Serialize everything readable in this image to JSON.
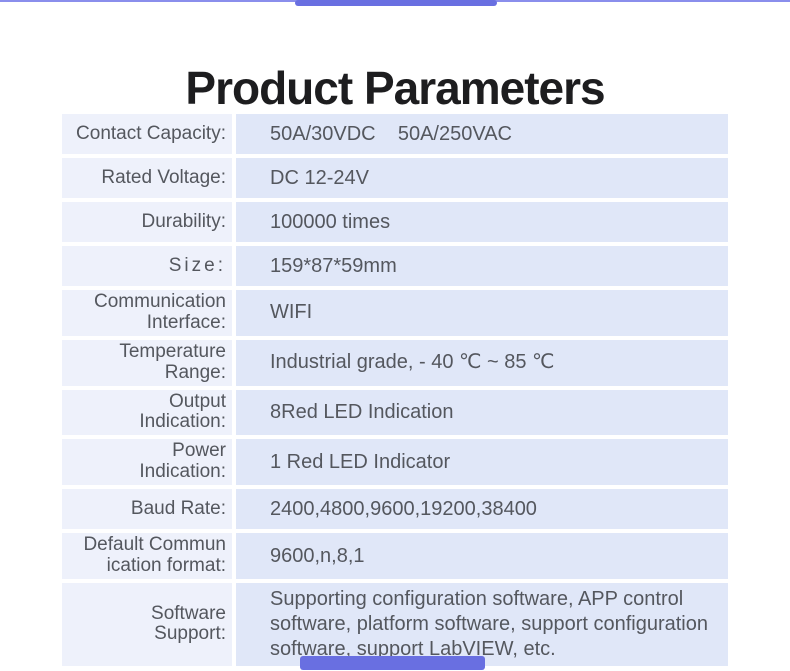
{
  "page": {
    "title": "Product Parameters"
  },
  "colors": {
    "accent": "#696fe1",
    "scroll_line": "#8a8eec",
    "label_bg": "#eef1fb",
    "value_bg": "#e0e7f8",
    "text": "#54575e",
    "title_text": "#1d1d1f"
  },
  "scrollbars": {
    "top_thumb": "horizontal-scrollbar-thumb",
    "bottom_thumb": "horizontal-scrollbar-thumb"
  },
  "table": {
    "rows": [
      {
        "label_lines": [
          "Contact Capacity:"
        ],
        "value": "50A/30VDC    50A/250VAC",
        "spaced": false,
        "tall": false
      },
      {
        "label_lines": [
          "Rated Voltage:"
        ],
        "value": "DC 12-24V",
        "spaced": false,
        "tall": false
      },
      {
        "label_lines": [
          "Durability:"
        ],
        "value": "100000 times",
        "spaced": false,
        "tall": false
      },
      {
        "label_lines": [
          "Size:"
        ],
        "value": "159*87*59mm",
        "spaced": true,
        "tall": false
      },
      {
        "label_lines": [
          "Communication",
          "Interface:"
        ],
        "value": "WIFI",
        "spaced": false,
        "tall": false
      },
      {
        "label_lines": [
          "Temperature",
          "Range:"
        ],
        "value": "Industrial grade, - 40 ℃ ~ 85 ℃",
        "spaced": false,
        "tall": false
      },
      {
        "label_lines": [
          "Output",
          "Indication:"
        ],
        "value": "8Red LED Indication",
        "spaced": false,
        "tall": false
      },
      {
        "label_lines": [
          "Power",
          "Indication:"
        ],
        "value": "1 Red LED Indicator",
        "spaced": false,
        "tall": false
      },
      {
        "label_lines": [
          "Baud Rate:"
        ],
        "value": "2400,4800,9600,19200,38400",
        "spaced": false,
        "tall": false
      },
      {
        "label_lines": [
          "Default Commun",
          "ication format:"
        ],
        "value": "9600,n,8,1",
        "spaced": false,
        "tall": false
      },
      {
        "label_lines": [
          "Software",
          "Support:"
        ],
        "value": "Supporting configuration software, APP control software, platform software, support configuration software, support LabVIEW, etc.",
        "spaced": false,
        "tall": true
      }
    ]
  }
}
